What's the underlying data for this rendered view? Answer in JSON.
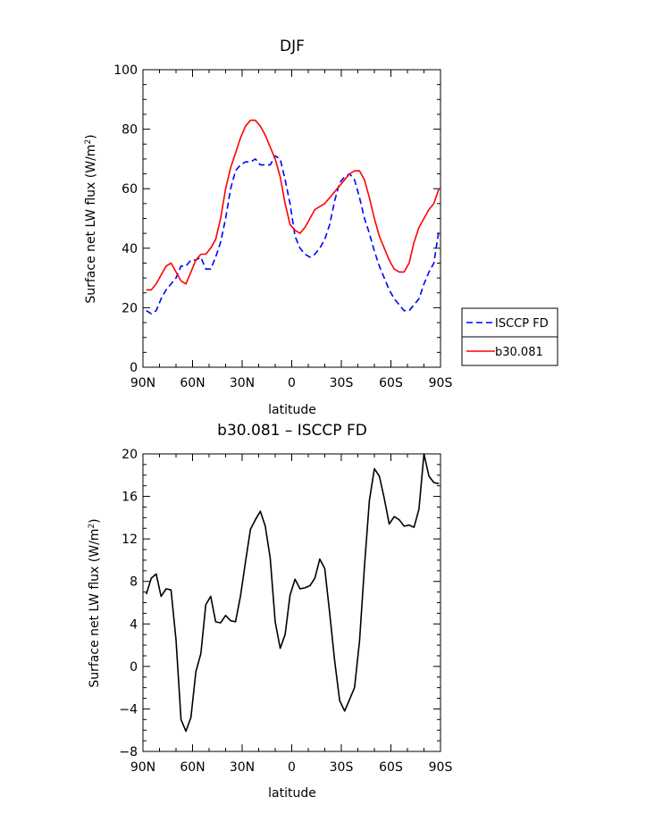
{
  "chart_data": [
    {
      "type": "line",
      "title": "DJF",
      "xlabel": "latitude",
      "ylabel": "Surface net LW flux (W/m²)",
      "ylabel_main": "Surface net LW flux (W/m",
      "ylabel_sup": "2",
      "ylabel_tail": ")",
      "xlim": [
        90,
        -90
      ],
      "ylim": [
        0,
        100
      ],
      "xticks": [
        90,
        60,
        30,
        0,
        -30,
        -60,
        -90
      ],
      "xtick_labels": [
        "90N",
        "60N",
        "30N",
        "0",
        "30S",
        "60S",
        "90S"
      ],
      "yticks": [
        0,
        20,
        40,
        60,
        80,
        100
      ],
      "ytick_labels": [
        "0",
        "20",
        "40",
        "60",
        "80",
        "100"
      ],
      "legend": "outside right",
      "series": [
        {
          "name": "ISCCP FD",
          "color": "#0000ff",
          "style": "dashed",
          "x": [
            88,
            85,
            82,
            79,
            76,
            73,
            70,
            67,
            64,
            61,
            58,
            55,
            52,
            49,
            46,
            43,
            40,
            37,
            34,
            31,
            28,
            25,
            22,
            19,
            16,
            13,
            10,
            7,
            4,
            1,
            -2,
            -5,
            -8,
            -11,
            -14,
            -17,
            -20,
            -23,
            -26,
            -29,
            -32,
            -35,
            -38,
            -41,
            -44,
            -47,
            -50,
            -53,
            -56,
            -59,
            -62,
            -65,
            -68,
            -71,
            -74,
            -77,
            -80,
            -83,
            -86,
            -89
          ],
          "values": [
            19,
            18,
            19,
            23,
            26,
            28,
            30,
            34,
            34,
            36,
            36,
            37,
            33,
            33,
            37,
            42,
            50,
            60,
            66,
            68,
            69,
            69,
            70,
            68,
            68,
            68,
            71,
            70,
            63,
            55,
            44,
            40,
            38,
            37,
            38,
            40,
            43,
            48,
            56,
            62,
            64,
            65,
            63,
            57,
            50,
            45,
            39,
            34,
            30,
            26,
            23,
            21,
            19,
            19,
            21,
            23,
            28,
            32,
            35,
            46
          ]
        },
        {
          "name": "b30.081",
          "color": "#ff0000",
          "style": "solid",
          "x": [
            88,
            85,
            82,
            79,
            76,
            73,
            70,
            67,
            64,
            61,
            58,
            55,
            52,
            49,
            46,
            43,
            40,
            37,
            34,
            31,
            28,
            25,
            22,
            19,
            16,
            13,
            10,
            7,
            4,
            1,
            -2,
            -5,
            -8,
            -11,
            -14,
            -17,
            -20,
            -23,
            -26,
            -29,
            -32,
            -35,
            -38,
            -41,
            -44,
            -47,
            -50,
            -53,
            -56,
            -59,
            -62,
            -65,
            -68,
            -71,
            -74,
            -77,
            -80,
            -83,
            -86,
            -89
          ],
          "values": [
            26,
            26,
            28,
            31,
            34,
            35,
            32,
            29,
            28,
            32,
            36,
            38,
            38,
            40,
            43,
            50,
            60,
            67,
            72,
            77,
            81,
            83,
            83,
            81,
            78,
            74,
            70,
            64,
            55,
            48,
            46,
            45,
            47,
            50,
            53,
            54,
            55,
            57,
            59,
            61,
            63,
            65,
            66,
            66,
            63,
            57,
            50,
            44,
            40,
            36,
            33,
            32,
            32,
            35,
            42,
            47,
            50,
            53,
            55,
            60
          ]
        }
      ]
    },
    {
      "type": "line",
      "title": "b30.081 – ISCCP FD",
      "xlabel": "latitude",
      "ylabel": "Surface net LW flux (W/m²)",
      "ylabel_main": "Surface net LW flux (W/m",
      "ylabel_sup": "2",
      "ylabel_tail": ")",
      "xlim": [
        90,
        -90
      ],
      "ylim": [
        -8,
        20
      ],
      "xticks": [
        90,
        60,
        30,
        0,
        -30,
        -60,
        -90
      ],
      "xtick_labels": [
        "90N",
        "60N",
        "30N",
        "0",
        "30S",
        "60S",
        "90S"
      ],
      "yticks": [
        -8,
        -4,
        0,
        4,
        8,
        12,
        16,
        20
      ],
      "ytick_labels": [
        "−8",
        "−4",
        "0",
        "4",
        "8",
        "12",
        "16",
        "20"
      ],
      "series": [
        {
          "color": "#000000",
          "style": "solid",
          "x": [
            88,
            85,
            82,
            79,
            76,
            73,
            70,
            67,
            64,
            61,
            58,
            55,
            52,
            49,
            46,
            43,
            40,
            37,
            34,
            31,
            28,
            25,
            22,
            19,
            16,
            13,
            10,
            7,
            4,
            1,
            -2,
            -5,
            -8,
            -11,
            -14,
            -17,
            -20,
            -23,
            -26,
            -29,
            -32,
            -35,
            -38,
            -41,
            -44,
            -47,
            -50,
            -53,
            -56,
            -59,
            -62,
            -65,
            -68,
            -71,
            -74,
            -77,
            -80,
            -83,
            -86,
            -89
          ],
          "values": [
            6.8,
            8.3,
            8.7,
            6.6,
            7.3,
            7.2,
            2.5,
            -5.0,
            -6.1,
            -4.8,
            -0.5,
            1.2,
            5.8,
            6.6,
            4.2,
            4.1,
            4.8,
            4.3,
            4.2,
            6.6,
            9.8,
            12.9,
            13.8,
            14.6,
            13.2,
            10.2,
            4.2,
            1.7,
            3.0,
            6.7,
            8.2,
            7.3,
            7.4,
            7.6,
            8.3,
            10.1,
            9.2,
            5.0,
            0.5,
            -3.2,
            -4.2,
            -3.1,
            -2.0,
            2.4,
            9.4,
            15.6,
            18.6,
            17.9,
            15.8,
            13.4,
            14.1,
            13.8,
            13.2,
            13.3,
            13.1,
            14.8,
            20.0,
            17.9,
            17.3,
            17.2
          ]
        }
      ]
    }
  ]
}
